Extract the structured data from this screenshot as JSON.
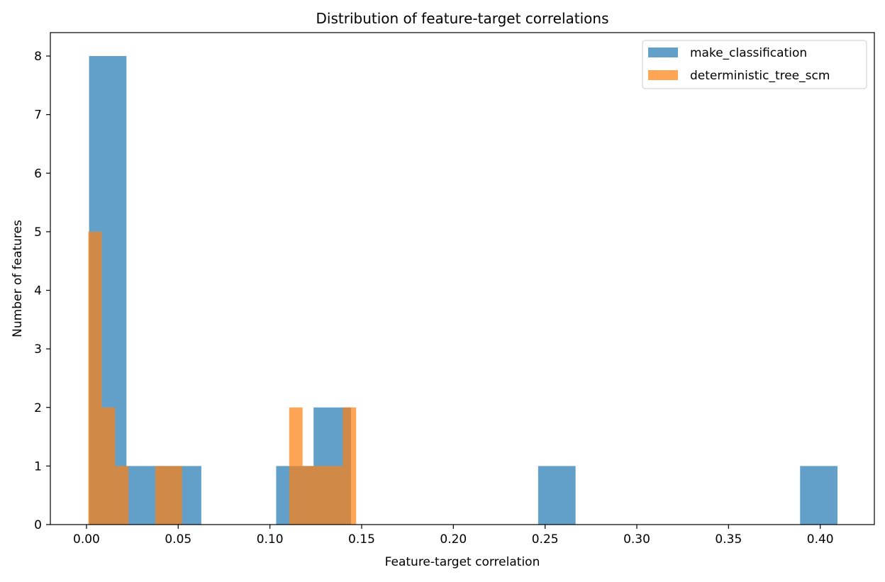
{
  "chart_data": {
    "type": "bar",
    "title": "Distribution of feature-target correlations",
    "xlabel": "Feature-target correlation",
    "ylabel": "Number of features",
    "xlim": [
      -0.0197,
      0.4295
    ],
    "ylim": [
      0,
      8.4
    ],
    "xticks": [
      0.0,
      0.05,
      0.1,
      0.15,
      0.2,
      0.25,
      0.3,
      0.35,
      0.4
    ],
    "xtick_labels": [
      "0.00",
      "0.05",
      "0.10",
      "0.15",
      "0.20",
      "0.25",
      "0.30",
      "0.35",
      "0.40"
    ],
    "yticks": [
      0,
      1,
      2,
      3,
      4,
      5,
      6,
      7,
      8
    ],
    "ytick_labels": [
      "0",
      "1",
      "2",
      "3",
      "4",
      "5",
      "6",
      "7",
      "8"
    ],
    "grid": false,
    "legend_position": "top-right",
    "series": [
      {
        "name": "make_classification",
        "color": "#1f77b4",
        "alpha": 0.7,
        "bin_edges": [
          0.0014,
          0.0218,
          0.0422,
          0.0626,
          0.083,
          0.1034,
          0.1238,
          0.1442,
          0.1646,
          0.185,
          0.2054,
          0.2258,
          0.2462,
          0.2666,
          0.287,
          0.3074,
          0.3278,
          0.3482,
          0.3686,
          0.389,
          0.4094
        ],
        "counts": [
          8,
          1,
          1,
          0,
          0,
          1,
          2,
          0,
          0,
          0,
          0,
          0,
          1,
          0,
          0,
          0,
          0,
          0,
          0,
          1
        ]
      },
      {
        "name": "deterministic_tree_scm",
        "color": "#ff7f0e",
        "alpha": 0.7,
        "bin_edges": [
          0.001,
          0.0083,
          0.0156,
          0.0229,
          0.0302,
          0.0375,
          0.0448,
          0.0521,
          0.0594,
          0.0667,
          0.074,
          0.0813,
          0.0886,
          0.0959,
          0.1032,
          0.1105,
          0.1178,
          0.1251,
          0.1324,
          0.1397,
          0.147
        ],
        "counts": [
          5,
          2,
          1,
          0,
          0,
          1,
          1,
          0,
          0,
          0,
          0,
          0,
          0,
          0,
          0,
          2,
          1,
          1,
          1,
          2
        ]
      }
    ]
  }
}
